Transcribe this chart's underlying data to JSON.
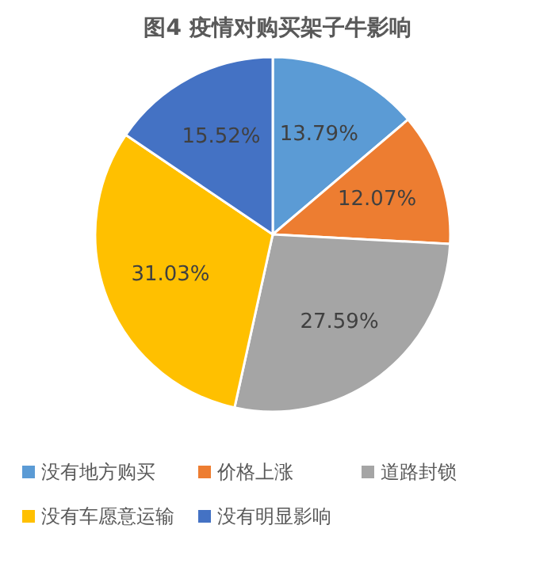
{
  "chart_data": {
    "type": "pie",
    "title": "图4 疫情对购买架子牛影响",
    "categories": [
      "没有地方购买",
      "价格上涨",
      "道路封锁",
      "没有车愿意运输",
      "没有明显影响"
    ],
    "values": [
      13.79,
      12.07,
      27.59,
      31.03,
      15.52
    ],
    "colors": [
      "#5b9bd5",
      "#ed7d31",
      "#a5a5a5",
      "#ffc000",
      "#4472c4"
    ],
    "value_labels": [
      "13.79%",
      "12.07%",
      "27.59%",
      "31.03%",
      "15.52%"
    ],
    "legend": "bottom"
  }
}
